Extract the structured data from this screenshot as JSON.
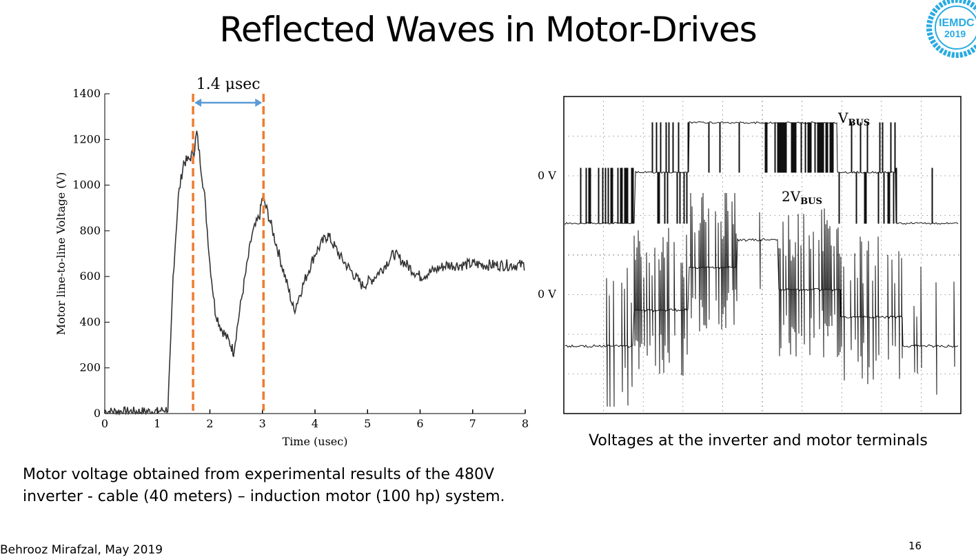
{
  "slide": {
    "title": "Reflected Waves in Motor-Drives",
    "author": "Behrooz Mirafzal, May 2019",
    "page_number": "16",
    "left_caption_line1": "Motor voltage obtained from experimental results of the 480V",
    "left_caption_line2": "inverter - cable (40 meters) – induction motor (100 hp) system.",
    "right_caption": "Voltages at the inverter and motor terminals"
  },
  "logo": {
    "text": "IEMDC",
    "year": "2019",
    "ring_color": "#29abe2",
    "text_color": "#29abe2"
  },
  "chart_data": [
    {
      "type": "line",
      "xlabel": "Time (usec)",
      "ylabel": "Motor line-to-line Voltage (V)",
      "xlim": [
        0,
        8
      ],
      "ylim": [
        0,
        1400
      ],
      "xticks": [
        "0",
        "1",
        "2",
        "3",
        "4",
        "5",
        "6",
        "7",
        "8"
      ],
      "yticks": [
        "0",
        "200",
        "400",
        "600",
        "800",
        "1000",
        "1200",
        "1400"
      ],
      "annotation": "1.4 μsec",
      "annotation_markers_x": [
        1.68,
        3.02
      ],
      "marker_color": "#ed7d31",
      "arrow_color": "#5b9bd5",
      "series": [
        {
          "x": [
            0,
            0.5,
            1.0,
            1.2,
            1.25,
            1.3,
            1.4,
            1.5,
            1.6,
            1.7,
            1.75,
            1.9,
            2.0,
            2.1,
            2.2,
            2.4,
            2.45,
            2.6,
            2.8,
            2.95,
            3.0,
            3.1,
            3.3,
            3.5,
            3.6,
            3.8,
            4.0,
            4.2,
            4.25,
            4.5,
            4.8,
            4.9,
            5.1,
            5.3,
            5.5,
            5.8,
            6.0,
            6.2,
            6.5,
            6.8,
            7.0,
            7.3,
            7.6,
            8.0
          ],
          "y": [
            10,
            10,
            10,
            20,
            280,
            600,
            950,
            1100,
            1110,
            1150,
            1230,
            950,
            660,
            450,
            380,
            300,
            270,
            500,
            780,
            870,
            950,
            880,
            710,
            540,
            450,
            580,
            700,
            770,
            780,
            680,
            590,
            560,
            590,
            640,
            700,
            640,
            600,
            620,
            650,
            650,
            655,
            650,
            650,
            650
          ],
          "color": "#333333"
        }
      ]
    },
    {
      "type": "line",
      "labels": [
        "V",
        "BUS",
        "2V",
        "BUS"
      ],
      "zero_label_top": "0 V",
      "zero_label_bottom": "0 V",
      "grid": true,
      "color": "#111111"
    }
  ]
}
